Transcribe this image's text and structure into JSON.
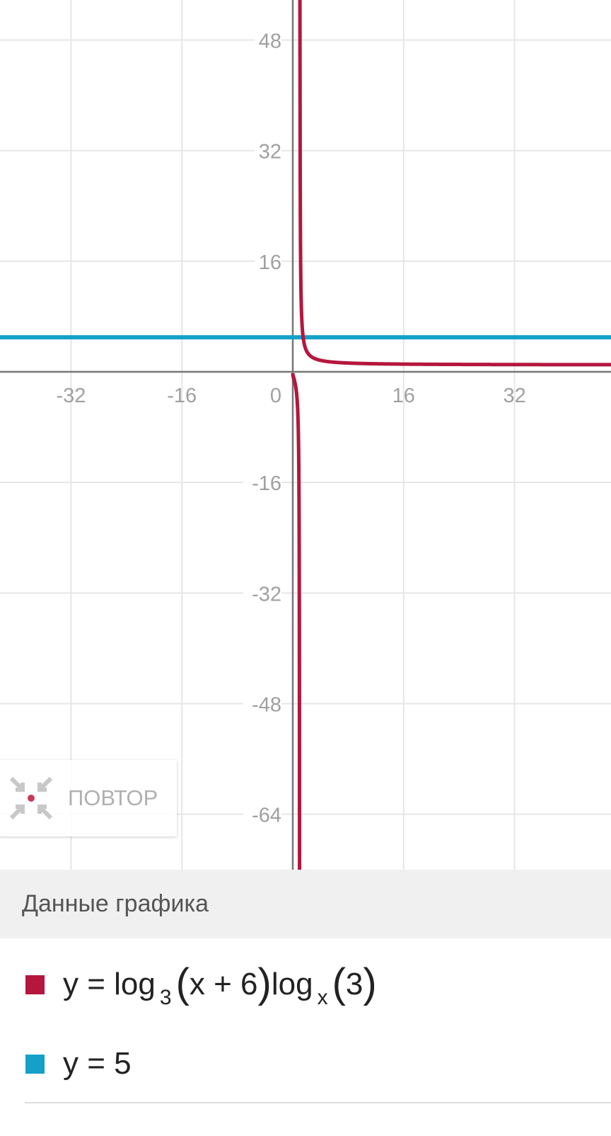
{
  "chart_data": {
    "type": "line",
    "xlim": [
      -42,
      44
    ],
    "ylim": [
      -72,
      54
    ],
    "grid": true,
    "x_ticks": [
      -32,
      -16,
      0,
      16,
      32
    ],
    "y_ticks": [
      48,
      32,
      16,
      -16,
      -32,
      -48,
      -64
    ],
    "series": [
      {
        "name": "y = log3(x + 6)logx(3)",
        "color": "#b5163d",
        "function": "ln(x+6)/ln(x)",
        "domain": "x>0, x≠1"
      },
      {
        "name": "y = 5",
        "color": "#15a0c8",
        "function": "5"
      }
    ]
  },
  "reset_button": {
    "label": "ПОВТОР"
  },
  "legend": {
    "title": "Данные графика",
    "items": [
      {
        "color": "#b5163d",
        "prefix": "y = log",
        "base1": "3",
        "arg1": "x + 6",
        "mid": "log",
        "base2": "x",
        "arg2": "3"
      },
      {
        "color": "#15a0c8",
        "text": "y = 5"
      }
    ]
  }
}
